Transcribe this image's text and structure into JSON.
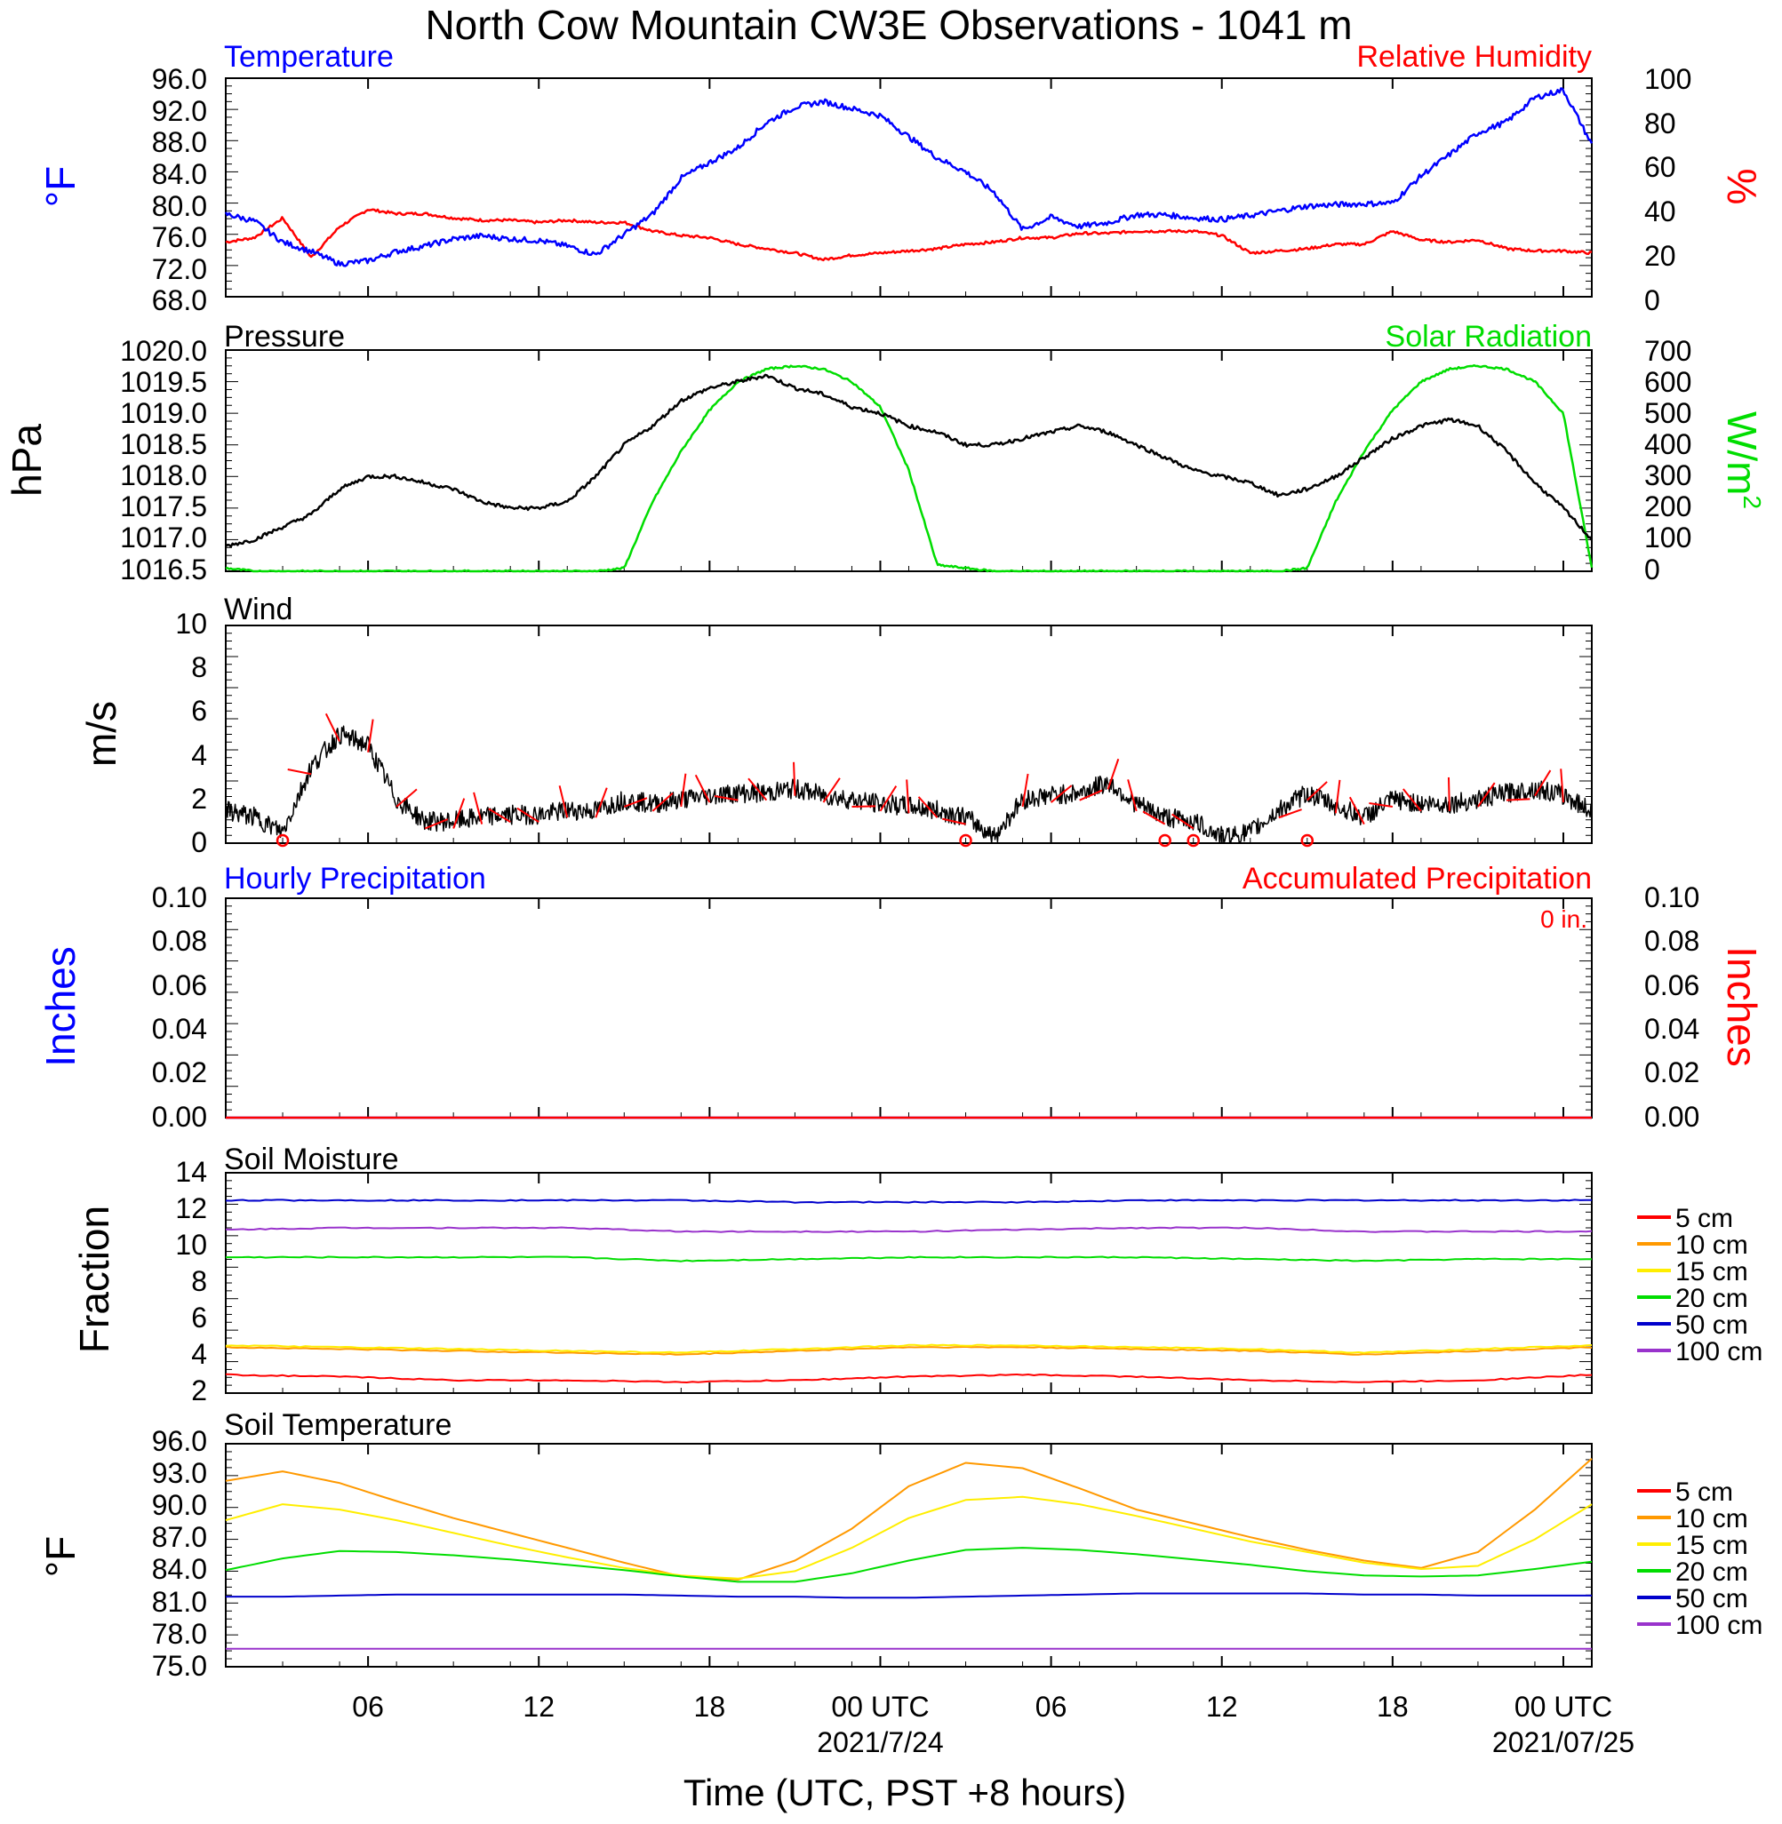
{
  "title": "North Cow Mountain CW3E Observations - 1041 m",
  "xaxis": {
    "label": "Time (UTC, PST +8 hours)",
    "ticks": [
      "06",
      "12",
      "18",
      "00 UTC",
      "06",
      "12",
      "18",
      "00 UTC"
    ],
    "dates": [
      "2021/7/24",
      "2021/07/25"
    ],
    "hours": [
      6,
      12,
      18,
      24,
      30,
      36,
      42,
      48
    ],
    "date_hours": [
      24,
      48
    ],
    "range_hours": [
      1,
      49
    ]
  },
  "colors": {
    "temperature": "#0000ff",
    "rh": "#ff0000",
    "pressure": "#000000",
    "solar": "#00dd00",
    "wind_speed": "#000000",
    "wind_barb": "#ff0000",
    "hourly_precip": "#0000ff",
    "accum_precip": "#ff0000",
    "5cm": "#ff0000",
    "10cm": "#ff9900",
    "15cm": "#ffee00",
    "20cm": "#00dd00",
    "50cm": "#0000cc",
    "100cm": "#9933cc"
  },
  "panels": {
    "temp_rh": {
      "left_title": "Temperature",
      "right_title": "Relative Humidity",
      "left_unit": "°F",
      "right_unit": "%",
      "left_ticks": [
        "96.0",
        "92.0",
        "88.0",
        "84.0",
        "80.0",
        "76.0",
        "72.0",
        "68.0"
      ],
      "right_ticks": [
        "100",
        "80",
        "60",
        "40",
        "20",
        "0"
      ]
    },
    "pressure_solar": {
      "left_title": "Pressure",
      "right_title": "Solar Radiation",
      "left_unit": "hPa",
      "right_unit": "W/m",
      "right_unit_sup": "2",
      "left_ticks": [
        "1020.0",
        "1019.5",
        "1019.0",
        "1018.5",
        "1018.0",
        "1017.5",
        "1017.0",
        "1016.5"
      ],
      "right_ticks": [
        "700",
        "600",
        "500",
        "400",
        "300",
        "200",
        "100",
        "0"
      ]
    },
    "wind": {
      "title": "Wind",
      "unit": "m/s",
      "ticks": [
        "10",
        "8",
        "6",
        "4",
        "2",
        "0"
      ]
    },
    "precip": {
      "left_title": "Hourly Precipitation",
      "right_title": "Accumulated Precipitation",
      "accum_label": "0 in.",
      "left_unit": "Inches",
      "right_unit": "Inches",
      "left_ticks": [
        "0.10",
        "0.08",
        "0.06",
        "0.04",
        "0.02",
        "0.00"
      ],
      "right_ticks": [
        "0.10",
        "0.08",
        "0.06",
        "0.04",
        "0.02",
        "0.00"
      ]
    },
    "soil_moisture": {
      "title": "Soil Moisture",
      "unit": "Fraction",
      "ticks": [
        "14",
        "12",
        "10",
        "8",
        "6",
        "4",
        "2"
      ],
      "legend": [
        "5 cm",
        "10 cm",
        "15 cm",
        "20 cm",
        "50 cm",
        "100 cm"
      ]
    },
    "soil_temp": {
      "title": "Soil Temperature",
      "unit": "°F",
      "ticks": [
        "96.0",
        "93.0",
        "90.0",
        "87.0",
        "84.0",
        "81.0",
        "78.0",
        "75.0"
      ],
      "legend": [
        "5 cm",
        "10 cm",
        "15 cm",
        "20 cm",
        "50 cm",
        "100 cm"
      ]
    }
  },
  "chart_data": [
    {
      "type": "line",
      "title": "Temperature / Relative Humidity",
      "x_hours": [
        1,
        2,
        3,
        4,
        5,
        6,
        7,
        8,
        9,
        10,
        11,
        12,
        13,
        14,
        15,
        16,
        17,
        18,
        19,
        20,
        21,
        22,
        23,
        24,
        25,
        26,
        27,
        28,
        29,
        30,
        31,
        32,
        33,
        34,
        35,
        36,
        37,
        38,
        39,
        40,
        41,
        42,
        43,
        44,
        45,
        46,
        47,
        48,
        49
      ],
      "series": [
        {
          "name": "Temperature",
          "unit": "°F",
          "ylim": [
            68,
            96
          ],
          "values": [
            78.6,
            77.7,
            75.0,
            73.8,
            72.2,
            72.6,
            73.8,
            74.5,
            75.4,
            75.8,
            75.4,
            75.2,
            74.5,
            73.4,
            76.0,
            78.6,
            83.2,
            85.2,
            87.1,
            90.3,
            92.3,
            93.0,
            92.1,
            91.2,
            88.5,
            85.8,
            84.0,
            81.4,
            76.6,
            78.2,
            77.0,
            77.5,
            78.5,
            78.5,
            78.1,
            77.9,
            78.4,
            79.0,
            79.6,
            79.8,
            79.9,
            80.0,
            83.5,
            86.2,
            89.0,
            90.4,
            93.5,
            94.5,
            87.5
          ]
        },
        {
          "name": "Relative Humidity",
          "unit": "%",
          "ylim": [
            0,
            100
          ],
          "values": [
            25,
            27,
            36,
            18,
            32,
            40,
            38,
            38,
            36,
            35,
            35,
            34,
            35,
            34,
            34,
            30,
            28,
            27,
            24,
            22,
            20,
            17,
            19,
            20,
            21,
            22,
            24,
            25,
            27,
            27,
            29,
            29,
            30,
            30,
            30,
            28,
            20,
            21,
            22,
            24,
            24,
            30,
            26,
            25,
            26,
            22,
            21,
            21,
            20
          ]
        }
      ]
    },
    {
      "type": "line",
      "title": "Pressure / Solar Radiation",
      "x_hours": [
        1,
        2,
        3,
        4,
        5,
        6,
        7,
        8,
        9,
        10,
        11,
        12,
        13,
        14,
        15,
        16,
        17,
        18,
        19,
        20,
        21,
        22,
        23,
        24,
        25,
        26,
        27,
        28,
        29,
        30,
        31,
        32,
        33,
        34,
        35,
        36,
        37,
        38,
        39,
        40,
        41,
        42,
        43,
        44,
        45,
        46,
        47,
        48,
        49
      ],
      "series": [
        {
          "name": "Pressure",
          "unit": "hPa",
          "ylim": [
            1016.5,
            1020.0
          ],
          "values": [
            1016.9,
            1017.0,
            1017.2,
            1017.4,
            1017.8,
            1018.0,
            1018.0,
            1017.9,
            1017.8,
            1017.6,
            1017.5,
            1017.5,
            1017.6,
            1018.0,
            1018.5,
            1018.8,
            1019.2,
            1019.4,
            1019.5,
            1019.6,
            1019.4,
            1019.3,
            1019.1,
            1019.0,
            1018.8,
            1018.7,
            1018.5,
            1018.5,
            1018.6,
            1018.7,
            1018.8,
            1018.7,
            1018.5,
            1018.3,
            1018.1,
            1018.0,
            1017.9,
            1017.7,
            1017.8,
            1018.0,
            1018.3,
            1018.6,
            1018.8,
            1018.9,
            1018.8,
            1018.4,
            1017.9,
            1017.5,
            1017.0
          ]
        },
        {
          "name": "Solar Radiation",
          "unit": "W/m2",
          "ylim": [
            0,
            700
          ],
          "values": [
            10,
            0,
            0,
            0,
            0,
            0,
            0,
            0,
            0,
            0,
            0,
            0,
            0,
            0,
            10,
            220,
            380,
            510,
            600,
            640,
            650,
            640,
            600,
            520,
            320,
            20,
            10,
            0,
            0,
            0,
            0,
            0,
            0,
            0,
            0,
            0,
            0,
            0,
            10,
            220,
            380,
            510,
            600,
            640,
            650,
            640,
            600,
            500,
            10
          ]
        }
      ]
    },
    {
      "type": "line",
      "title": "Wind",
      "x_hours": [
        1,
        2,
        3,
        4,
        5,
        6,
        7,
        8,
        9,
        10,
        11,
        12,
        13,
        14,
        15,
        16,
        17,
        18,
        19,
        20,
        21,
        22,
        23,
        24,
        25,
        26,
        27,
        28,
        29,
        30,
        31,
        32,
        33,
        34,
        35,
        36,
        37,
        38,
        39,
        40,
        41,
        42,
        43,
        44,
        45,
        46,
        47,
        48,
        49
      ],
      "series": [
        {
          "name": "Wind Speed",
          "unit": "m/s",
          "ylim": [
            0,
            10
          ],
          "values": [
            1.5,
            1.2,
            0.5,
            3.5,
            5.0,
            4.5,
            2.0,
            1.0,
            1.0,
            1.2,
            1.3,
            1.3,
            1.5,
            1.5,
            2.0,
            1.8,
            2.0,
            2.2,
            2.3,
            2.3,
            2.5,
            2.2,
            2.0,
            1.8,
            1.7,
            1.5,
            1.2,
            0.3,
            2.0,
            2.2,
            2.3,
            2.8,
            1.8,
            1.2,
            1.0,
            0.3,
            0.5,
            1.5,
            2.3,
            1.7,
            1.2,
            2.0,
            1.8,
            1.8,
            2.0,
            2.3,
            2.5,
            2.2,
            1.5
          ]
        }
      ],
      "calm_markers_hours": [
        3,
        27,
        34,
        35,
        39
      ]
    },
    {
      "type": "line",
      "title": "Precipitation",
      "x_hours": [
        1,
        49
      ],
      "series": [
        {
          "name": "Hourly Precipitation",
          "unit": "in",
          "ylim": [
            0,
            0.1
          ],
          "values": [
            0,
            0
          ]
        },
        {
          "name": "Accumulated Precipitation",
          "unit": "in",
          "ylim": [
            0,
            0.1
          ],
          "values": [
            0,
            0
          ]
        }
      ]
    },
    {
      "type": "line",
      "title": "Soil Moisture",
      "x_hours": [
        1,
        5,
        9,
        13,
        17,
        21,
        25,
        29,
        33,
        37,
        41,
        45,
        49
      ],
      "ylim": [
        2,
        14
      ],
      "series": [
        {
          "name": "5 cm",
          "values": [
            3.0,
            2.9,
            2.7,
            2.7,
            2.6,
            2.7,
            2.9,
            3.0,
            2.9,
            2.7,
            2.6,
            2.7,
            3.0
          ]
        },
        {
          "name": "10 cm",
          "values": [
            4.5,
            4.4,
            4.3,
            4.2,
            4.1,
            4.3,
            4.5,
            4.5,
            4.4,
            4.3,
            4.1,
            4.3,
            4.5
          ]
        },
        {
          "name": "15 cm",
          "values": [
            4.6,
            4.5,
            4.4,
            4.3,
            4.2,
            4.4,
            4.6,
            4.6,
            4.5,
            4.4,
            4.2,
            4.4,
            4.6
          ]
        },
        {
          "name": "20 cm",
          "values": [
            9.4,
            9.4,
            9.4,
            9.4,
            9.2,
            9.3,
            9.4,
            9.4,
            9.4,
            9.3,
            9.2,
            9.3,
            9.3
          ]
        },
        {
          "name": "50 cm",
          "values": [
            12.5,
            12.5,
            12.5,
            12.5,
            12.5,
            12.4,
            12.4,
            12.4,
            12.5,
            12.5,
            12.5,
            12.5,
            12.5
          ]
        },
        {
          "name": "100 cm",
          "values": [
            10.9,
            11.0,
            11.0,
            11.0,
            10.8,
            10.8,
            10.8,
            10.9,
            11.0,
            11.0,
            10.8,
            10.8,
            10.8
          ]
        }
      ]
    },
    {
      "type": "line",
      "title": "Soil Temperature",
      "x_hours": [
        1,
        3,
        5,
        7,
        9,
        11,
        13,
        15,
        17,
        19,
        21,
        23,
        25,
        27,
        29,
        31,
        33,
        35,
        37,
        39,
        41,
        43,
        45,
        47,
        49
      ],
      "ylim": [
        75,
        96
      ],
      "series": [
        {
          "name": "5 cm",
          "values": []
        },
        {
          "name": "10 cm",
          "values": [
            92.5,
            93.4,
            92.3,
            90.6,
            89.0,
            87.6,
            86.2,
            84.8,
            83.5,
            83.2,
            85.0,
            88.0,
            92.0,
            94.2,
            93.7,
            91.8,
            89.8,
            88.5,
            87.2,
            86.0,
            85.0,
            84.3,
            85.8,
            89.8,
            94.6
          ]
        },
        {
          "name": "15 cm",
          "values": [
            88.8,
            90.3,
            89.8,
            88.8,
            87.6,
            86.4,
            85.3,
            84.3,
            83.6,
            83.3,
            84.0,
            86.2,
            89.0,
            90.7,
            91.0,
            90.3,
            89.2,
            88.0,
            86.8,
            85.8,
            84.8,
            84.2,
            84.5,
            87.0,
            90.3
          ]
        },
        {
          "name": "20 cm",
          "values": [
            84.1,
            85.2,
            85.9,
            85.8,
            85.5,
            85.1,
            84.6,
            84.1,
            83.5,
            83.0,
            83.0,
            83.8,
            85.0,
            86.0,
            86.2,
            86.0,
            85.6,
            85.1,
            84.6,
            84.0,
            83.6,
            83.5,
            83.6,
            84.2,
            84.9
          ]
        },
        {
          "name": "50 cm",
          "values": [
            81.6,
            81.6,
            81.7,
            81.8,
            81.8,
            81.8,
            81.8,
            81.8,
            81.7,
            81.6,
            81.6,
            81.5,
            81.5,
            81.6,
            81.7,
            81.8,
            81.9,
            81.9,
            81.9,
            81.9,
            81.8,
            81.8,
            81.7,
            81.7,
            81.7
          ]
        },
        {
          "name": "100 cm",
          "values": [
            76.7,
            76.7,
            76.7,
            76.7,
            76.7,
            76.7,
            76.7,
            76.7,
            76.7,
            76.7,
            76.7,
            76.7,
            76.7,
            76.7,
            76.7,
            76.7,
            76.7,
            76.7,
            76.7,
            76.7,
            76.7,
            76.7,
            76.7,
            76.7,
            76.7
          ]
        }
      ]
    }
  ]
}
